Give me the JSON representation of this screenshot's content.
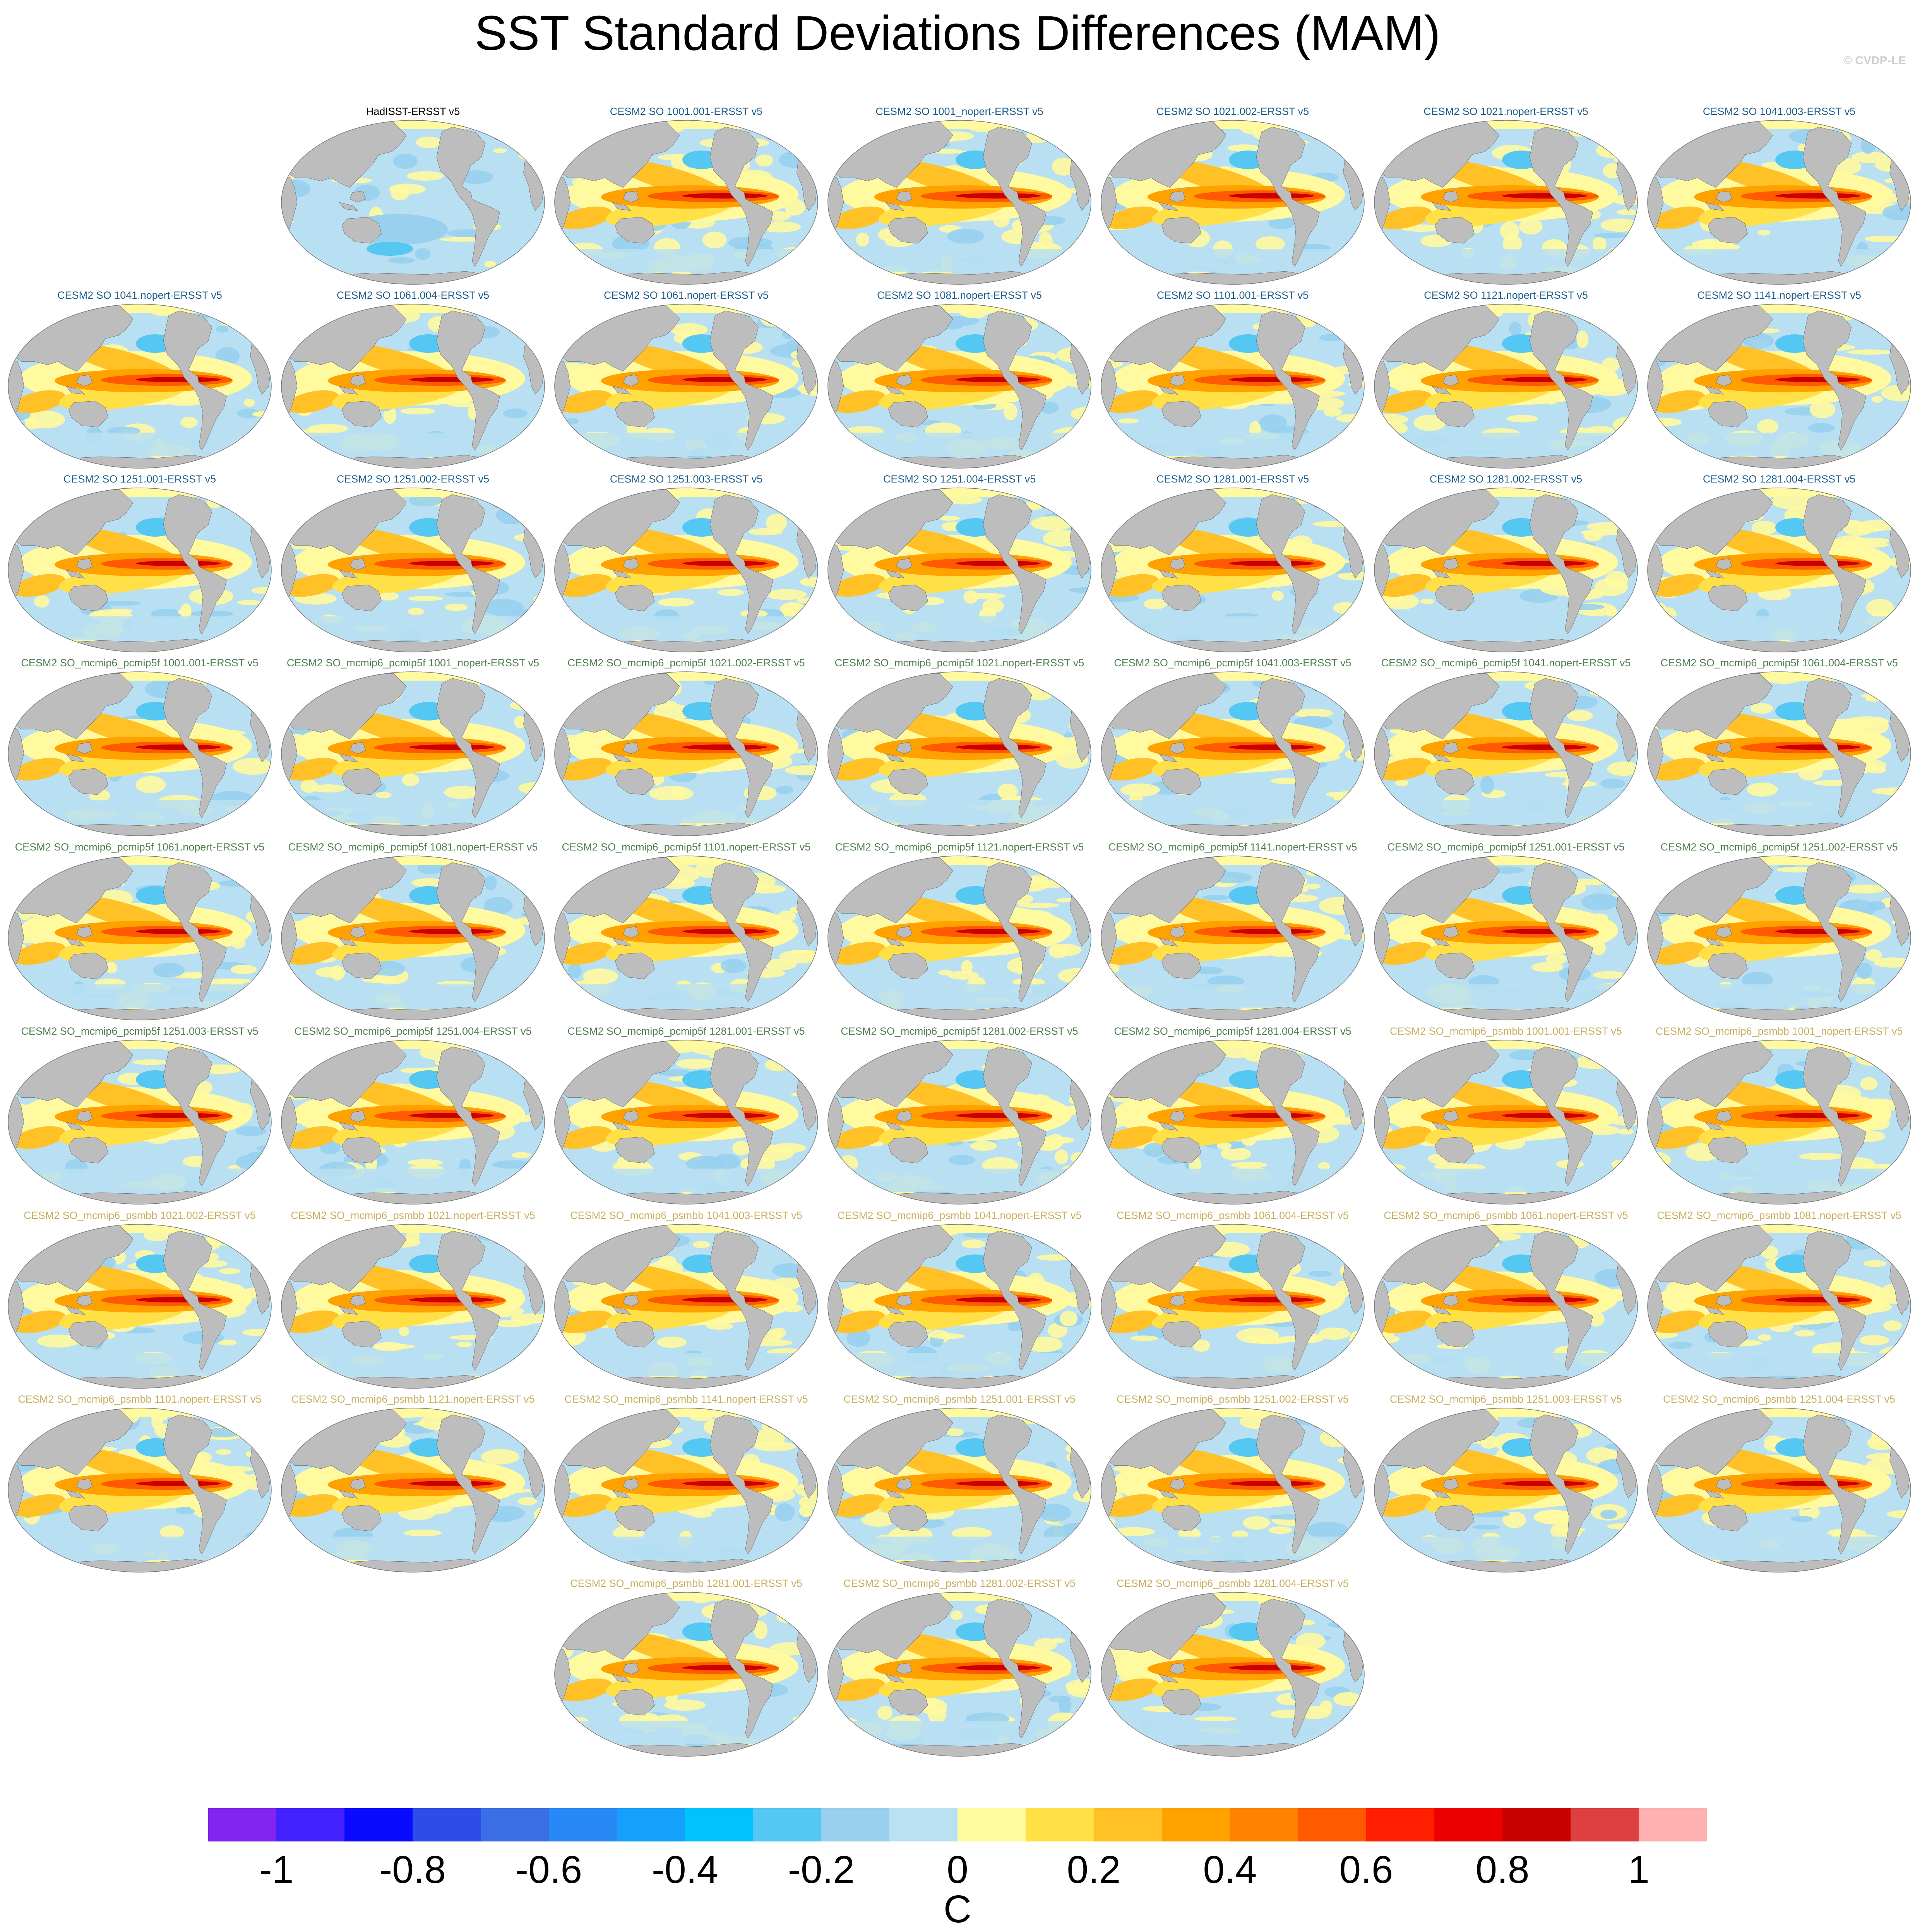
{
  "title": "SST Standard Deviations Differences (MAM)",
  "copyright": "© CVDP-LE",
  "colors": {
    "ocean_base": "#b9dff2",
    "land": "#bdbdbd",
    "title_obs": "#000000",
    "title_so": "#1f5f8b",
    "title_pcmip5f": "#4f7f4f",
    "title_psmbb": "#c8b060"
  },
  "chart_data": {
    "type": "heatmap",
    "projection": "Robinson (Pacific-centered)",
    "variable": "SST standard deviation difference",
    "season": "MAM",
    "panels": [
      {
        "label": "HadISST-ERSST v5",
        "group": "obs"
      },
      {
        "label": "CESM2 SO 1001.001-ERSST v5",
        "group": "so"
      },
      {
        "label": "CESM2 SO 1001_nopert-ERSST v5",
        "group": "so"
      },
      {
        "label": "CESM2 SO 1021.002-ERSST v5",
        "group": "so"
      },
      {
        "label": "CESM2 SO 1021.nopert-ERSST v5",
        "group": "so"
      },
      {
        "label": "CESM2 SO 1041.003-ERSST v5",
        "group": "so"
      },
      {
        "label": "CESM2 SO 1041.nopert-ERSST v5",
        "group": "so"
      },
      {
        "label": "CESM2 SO 1061.004-ERSST v5",
        "group": "so"
      },
      {
        "label": "CESM2 SO 1061.nopert-ERSST v5",
        "group": "so"
      },
      {
        "label": "CESM2 SO 1081.nopert-ERSST v5",
        "group": "so"
      },
      {
        "label": "CESM2 SO 1101.001-ERSST v5",
        "group": "so"
      },
      {
        "label": "CESM2 SO 1121.nopert-ERSST v5",
        "group": "so"
      },
      {
        "label": "CESM2 SO 1141.nopert-ERSST v5",
        "group": "so"
      },
      {
        "label": "CESM2 SO 1251.001-ERSST v5",
        "group": "so"
      },
      {
        "label": "CESM2 SO 1251.002-ERSST v5",
        "group": "so"
      },
      {
        "label": "CESM2 SO 1251.003-ERSST v5",
        "group": "so"
      },
      {
        "label": "CESM2 SO 1251.004-ERSST v5",
        "group": "so"
      },
      {
        "label": "CESM2 SO 1281.001-ERSST v5",
        "group": "so"
      },
      {
        "label": "CESM2 SO 1281.002-ERSST v5",
        "group": "so"
      },
      {
        "label": "CESM2 SO 1281.004-ERSST v5",
        "group": "so"
      },
      {
        "label": "CESM2 SO_mcmip6_pcmip5f 1001.001-ERSST v5",
        "group": "pcmip5f"
      },
      {
        "label": "CESM2 SO_mcmip6_pcmip5f 1001_nopert-ERSST v5",
        "group": "pcmip5f"
      },
      {
        "label": "CESM2 SO_mcmip6_pcmip5f 1021.002-ERSST v5",
        "group": "pcmip5f"
      },
      {
        "label": "CESM2 SO_mcmip6_pcmip5f 1021.nopert-ERSST v5",
        "group": "pcmip5f"
      },
      {
        "label": "CESM2 SO_mcmip6_pcmip5f 1041.003-ERSST v5",
        "group": "pcmip5f"
      },
      {
        "label": "CESM2 SO_mcmip6_pcmip5f 1041.nopert-ERSST v5",
        "group": "pcmip5f"
      },
      {
        "label": "CESM2 SO_mcmip6_pcmip5f 1061.004-ERSST v5",
        "group": "pcmip5f"
      },
      {
        "label": "CESM2 SO_mcmip6_pcmip5f 1061.nopert-ERSST v5",
        "group": "pcmip5f"
      },
      {
        "label": "CESM2 SO_mcmip6_pcmip5f 1081.nopert-ERSST v5",
        "group": "pcmip5f"
      },
      {
        "label": "CESM2 SO_mcmip6_pcmip5f 1101.nopert-ERSST v5",
        "group": "pcmip5f"
      },
      {
        "label": "CESM2 SO_mcmip6_pcmip5f 1121.nopert-ERSST v5",
        "group": "pcmip5f"
      },
      {
        "label": "CESM2 SO_mcmip6_pcmip5f 1141.nopert-ERSST v5",
        "group": "pcmip5f"
      },
      {
        "label": "CESM2 SO_mcmip6_pcmip5f 1251.001-ERSST v5",
        "group": "pcmip5f"
      },
      {
        "label": "CESM2 SO_mcmip6_pcmip5f 1251.002-ERSST v5",
        "group": "pcmip5f"
      },
      {
        "label": "CESM2 SO_mcmip6_pcmip5f 1251.003-ERSST v5",
        "group": "pcmip5f"
      },
      {
        "label": "CESM2 SO_mcmip6_pcmip5f 1251.004-ERSST v5",
        "group": "pcmip5f"
      },
      {
        "label": "CESM2 SO_mcmip6_pcmip5f 1281.001-ERSST v5",
        "group": "pcmip5f"
      },
      {
        "label": "CESM2 SO_mcmip6_pcmip5f 1281.002-ERSST v5",
        "group": "pcmip5f"
      },
      {
        "label": "CESM2 SO_mcmip6_pcmip5f 1281.004-ERSST v5",
        "group": "pcmip5f"
      },
      {
        "label": "CESM2 SO_mcmip6_psmbb 1001.001-ERSST v5",
        "group": "psmbb"
      },
      {
        "label": "CESM2 SO_mcmip6_psmbb 1001_nopert-ERSST v5",
        "group": "psmbb"
      },
      {
        "label": "CESM2 SO_mcmip6_psmbb 1021.002-ERSST v5",
        "group": "psmbb"
      },
      {
        "label": "CESM2 SO_mcmip6_psmbb 1021.nopert-ERSST v5",
        "group": "psmbb"
      },
      {
        "label": "CESM2 SO_mcmip6_psmbb 1041.003-ERSST v5",
        "group": "psmbb"
      },
      {
        "label": "CESM2 SO_mcmip6_psmbb 1041.nopert-ERSST v5",
        "group": "psmbb"
      },
      {
        "label": "CESM2 SO_mcmip6_psmbb 1061.004-ERSST v5",
        "group": "psmbb"
      },
      {
        "label": "CESM2 SO_mcmip6_psmbb 1061.nopert-ERSST v5",
        "group": "psmbb"
      },
      {
        "label": "CESM2 SO_mcmip6_psmbb 1081.nopert-ERSST v5",
        "group": "psmbb"
      },
      {
        "label": "CESM2 SO_mcmip6_psmbb 1101.nopert-ERSST v5",
        "group": "psmbb"
      },
      {
        "label": "CESM2 SO_mcmip6_psmbb 1121.nopert-ERSST v5",
        "group": "psmbb"
      },
      {
        "label": "CESM2 SO_mcmip6_psmbb 1141.nopert-ERSST v5",
        "group": "psmbb"
      },
      {
        "label": "CESM2 SO_mcmip6_psmbb 1251.001-ERSST v5",
        "group": "psmbb"
      },
      {
        "label": "CESM2 SO_mcmip6_psmbb 1251.002-ERSST v5",
        "group": "psmbb"
      },
      {
        "label": "CESM2 SO_mcmip6_psmbb 1251.003-ERSST v5",
        "group": "psmbb"
      },
      {
        "label": "CESM2 SO_mcmip6_psmbb 1251.004-ERSST v5",
        "group": "psmbb"
      },
      {
        "label": "CESM2 SO_mcmip6_psmbb 1281.001-ERSST v5",
        "group": "psmbb"
      },
      {
        "label": "CESM2 SO_mcmip6_psmbb 1281.002-ERSST v5",
        "group": "psmbb"
      },
      {
        "label": "CESM2 SO_mcmip6_psmbb 1281.004-ERSST v5",
        "group": "psmbb"
      }
    ],
    "colorbar": {
      "label": "C",
      "min": -1.1,
      "max": 1.1,
      "step": 0.1,
      "colors": [
        "#8224f0",
        "#4422ff",
        "#0a0aff",
        "#2e4de8",
        "#3c6fe6",
        "#2888f6",
        "#14a0fb",
        "#00c2fc",
        "#55c7f3",
        "#98d0ee",
        "#b9e1f2",
        "#fff9a0",
        "#ffe046",
        "#ffc125",
        "#ffa200",
        "#ff8200",
        "#ff5a00",
        "#ff1e00",
        "#ee0000",
        "#c80000",
        "#dd4040",
        "#ffb0b0"
      ],
      "ticks": [
        -1,
        -0.8,
        -0.6,
        -0.4,
        -0.2,
        0,
        0.2,
        0.4,
        0.6,
        0.8,
        1
      ],
      "tick_labels": [
        "-1",
        "-0.8",
        "-0.6",
        "-0.4",
        "-0.2",
        "0",
        "0.2",
        "0.4",
        "0.6",
        "0.8",
        "1"
      ]
    }
  }
}
